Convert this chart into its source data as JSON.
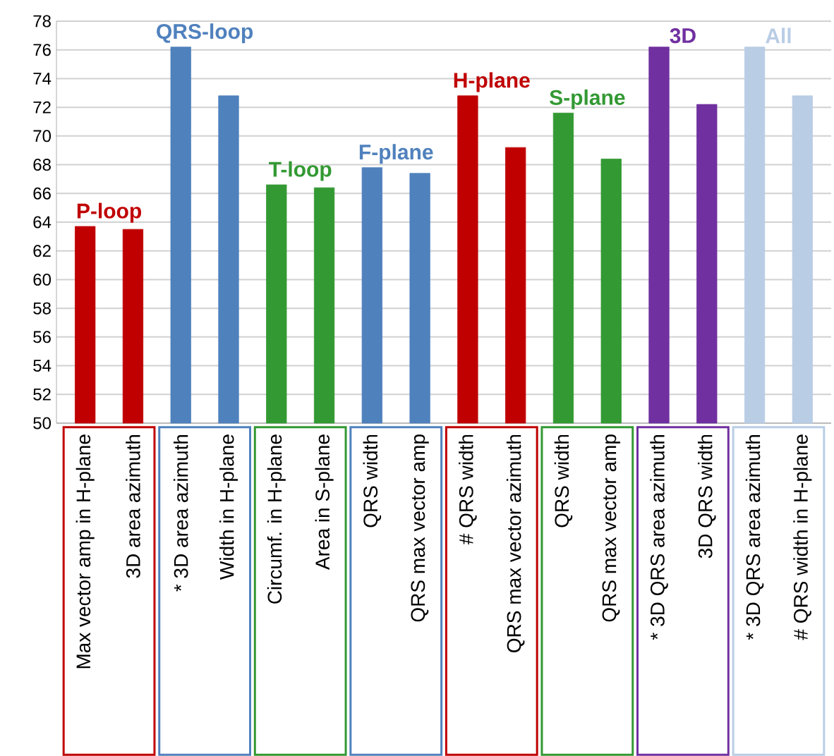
{
  "chart_data": {
    "type": "bar",
    "categories": [
      "Max vector amp in H-plane",
      "3D area azimuth",
      "* 3D area azimuth",
      "Width in H-plane",
      "Circumf. in H-plane",
      "Area in S-plane",
      "QRS width",
      "QRS max vector amp",
      "# QRS width",
      "QRS max vector azimuth",
      "QRS width",
      "QRS max vector amp",
      "* 3D QRS area azimuth",
      "3D QRS width",
      "* 3D QRS area azimuth",
      "# QRS width in H-plane"
    ],
    "values": [
      63.7,
      63.5,
      76.2,
      72.8,
      66.6,
      66.4,
      67.8,
      67.4,
      72.8,
      69.2,
      71.6,
      68.4,
      76.2,
      72.2,
      76.2,
      72.8
    ],
    "colors": [
      "#c00000",
      "#c00000",
      "#4f81bd",
      "#4f81bd",
      "#339933",
      "#339933",
      "#4f81bd",
      "#4f81bd",
      "#c00000",
      "#c00000",
      "#339933",
      "#339933",
      "#7030a0",
      "#7030a0",
      "#b9cde5",
      "#b9cde5"
    ],
    "annotations": [
      "P-loop",
      "QRS-loop",
      "T-loop",
      "F-plane",
      "H-plane",
      "S-plane",
      "3D",
      "All"
    ],
    "ylim": [
      50,
      78
    ],
    "yticks": [
      50,
      52,
      54,
      56,
      58,
      60,
      62,
      64,
      66,
      68,
      70,
      72,
      74,
      76,
      78
    ],
    "grid": "y"
  }
}
